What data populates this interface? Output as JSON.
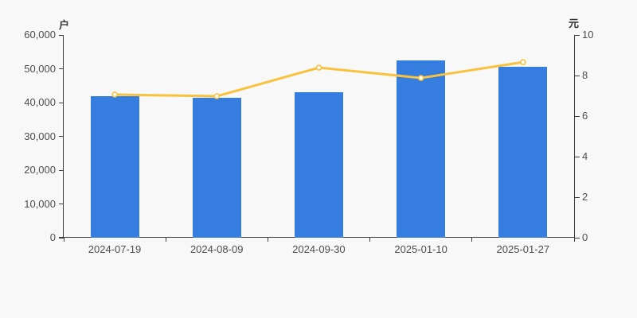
{
  "chart_data": {
    "type": "bar",
    "subtype": "bar-line-combo",
    "title": "",
    "categories": [
      "2024-07-19",
      "2024-08-09",
      "2024-09-30",
      "2025-01-10",
      "2025-01-27"
    ],
    "series": [
      {
        "name": "bar-series",
        "type": "bar",
        "axis": "left",
        "unit": "户",
        "values": [
          41900,
          41500,
          43000,
          52500,
          50600
        ],
        "color": "#357EE0"
      },
      {
        "name": "line-series",
        "type": "line",
        "axis": "right",
        "unit": "元",
        "values": [
          7.06,
          6.98,
          8.39,
          7.88,
          8.66
        ],
        "color": "#F9C23C",
        "marker": "hollow-circle",
        "marker_fill": "#FFFFFF"
      }
    ],
    "left_axis": {
      "label": "户",
      "min": 0,
      "max": 60000,
      "tick_step": 10000,
      "ticks": [
        "0",
        "10,000",
        "20,000",
        "30,000",
        "40,000",
        "50,000",
        "60,000"
      ]
    },
    "right_axis": {
      "label": "元",
      "min": 0,
      "max": 10,
      "tick_step": 2,
      "ticks": [
        "0",
        "2",
        "4",
        "6",
        "8",
        "10"
      ]
    },
    "legend": "none",
    "grid": "off",
    "colors": {
      "background": "#F8F8F8",
      "axis_line": "#3C3C3C",
      "tick_text": "#4D4D4D",
      "unit_text": "#333333"
    }
  }
}
